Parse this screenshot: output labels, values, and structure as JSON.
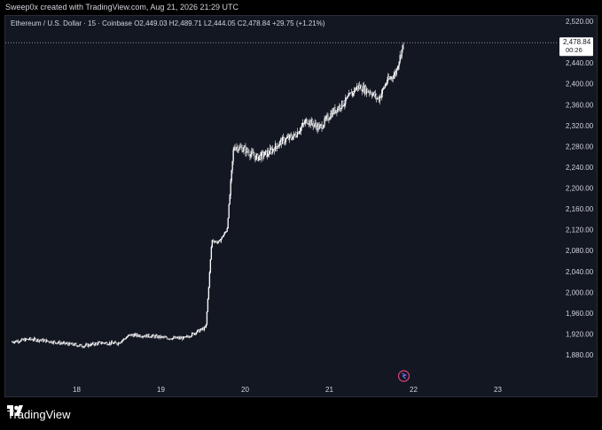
{
  "header": {
    "text": "Sweep0x created with TradingView.com, Aug 21, 2026 21:29 UTC"
  },
  "symbol": {
    "name": "Ethereum / U.S. Dollar · 15 · Coinbase",
    "open_label": "O",
    "open": "2,449.03",
    "high_label": "H",
    "high": "2,489.71",
    "low_label": "L",
    "low": "2,444.05",
    "close_label": "C",
    "close": "2,478.84",
    "change": "+29.75 (+1.21%)"
  },
  "price_label": {
    "value": "2,478.84",
    "countdown": "00:26"
  },
  "footer": {
    "brand": "TradingView"
  },
  "colors": {
    "background": "#131722",
    "candle": "#ffffff",
    "axis_text": "#d1d4dc",
    "grid": "#2a2e39"
  },
  "chart_data": {
    "type": "candlestick",
    "x_ticks": [
      "18",
      "19",
      "20",
      "21",
      "22",
      "23"
    ],
    "y_ticks": [
      "2,520.00",
      "2,480.00",
      "2,440.00",
      "2,400.00",
      "2,360.00",
      "2,320.00",
      "2,280.00",
      "2,240.00",
      "2,200.00",
      "2,160.00",
      "2,120.00",
      "2,080.00",
      "2,040.00",
      "2,000.00",
      "1,960.00",
      "1,920.00",
      "1,880.00"
    ],
    "ylim": [
      1880,
      2520
    ],
    "last_price": 2478.84,
    "series": [
      {
        "day": 17.25,
        "close": 1905
      },
      {
        "day": 17.45,
        "close": 1910
      },
      {
        "day": 17.6,
        "close": 1908
      },
      {
        "day": 17.85,
        "close": 1902
      },
      {
        "day": 18.1,
        "close": 1897
      },
      {
        "day": 18.3,
        "close": 1903
      },
      {
        "day": 18.5,
        "close": 1902
      },
      {
        "day": 18.65,
        "close": 1918
      },
      {
        "day": 18.9,
        "close": 1916
      },
      {
        "day": 19.1,
        "close": 1912
      },
      {
        "day": 19.3,
        "close": 1912
      },
      {
        "day": 19.45,
        "close": 1925
      },
      {
        "day": 19.55,
        "close": 1932
      },
      {
        "day": 19.62,
        "close": 2100
      },
      {
        "day": 19.7,
        "close": 2095
      },
      {
        "day": 19.8,
        "close": 2120
      },
      {
        "day": 19.88,
        "close": 2280
      },
      {
        "day": 20.0,
        "close": 2275
      },
      {
        "day": 20.15,
        "close": 2258
      },
      {
        "day": 20.3,
        "close": 2268
      },
      {
        "day": 20.45,
        "close": 2290
      },
      {
        "day": 20.6,
        "close": 2300
      },
      {
        "day": 20.75,
        "close": 2330
      },
      {
        "day": 20.9,
        "close": 2315
      },
      {
        "day": 21.05,
        "close": 2345
      },
      {
        "day": 21.2,
        "close": 2365
      },
      {
        "day": 21.35,
        "close": 2395
      },
      {
        "day": 21.5,
        "close": 2385
      },
      {
        "day": 21.6,
        "close": 2370
      },
      {
        "day": 21.7,
        "close": 2405
      },
      {
        "day": 21.8,
        "close": 2420
      },
      {
        "day": 21.9,
        "close": 2478.84
      }
    ]
  }
}
